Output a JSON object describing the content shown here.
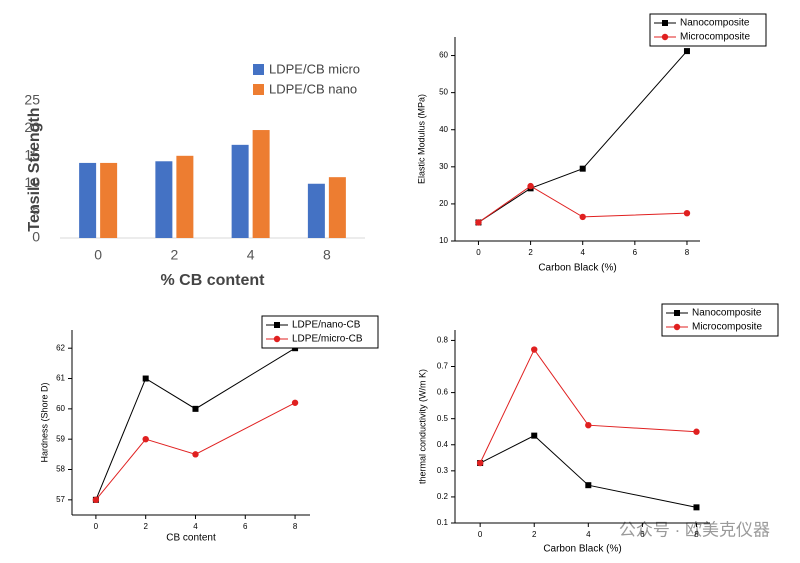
{
  "chart_data": [
    {
      "type": "bar",
      "ylabel": "Tensile Strength",
      "xlabel": "% CB content",
      "categories": [
        "0",
        "2",
        "4",
        "8"
      ],
      "series": [
        {
          "name": "LDPE/CB micro",
          "color": "#4472c4",
          "values": [
            13.7,
            14.0,
            17.0,
            9.9
          ]
        },
        {
          "name": "LDPE/CB nano",
          "color": "#ed7d31",
          "values": [
            13.7,
            15.0,
            19.7,
            11.1
          ]
        }
      ],
      "ylim": [
        0,
        25
      ],
      "yticks": [
        0,
        5,
        10,
        15,
        20,
        25
      ],
      "grid": false,
      "legend": "top-right"
    },
    {
      "type": "line",
      "xlabel": "Carbon Black (%)",
      "ylabel": "Elastic Modulus (MPa)",
      "x": [
        0,
        2,
        4,
        8
      ],
      "series": [
        {
          "name": "Nanocomposite",
          "color": "#000000",
          "marker": "square",
          "values": [
            15,
            24.2,
            29.5,
            61.2
          ]
        },
        {
          "name": "Microcomposite",
          "color": "#e02020",
          "marker": "circle",
          "values": [
            15,
            24.8,
            16.5,
            17.5
          ]
        }
      ],
      "xlim": [
        -0.9,
        8.5
      ],
      "xticks": [
        0,
        2,
        4,
        6,
        8
      ],
      "ylim": [
        10,
        65
      ],
      "yticks": [
        10,
        20,
        30,
        40,
        50,
        60
      ],
      "grid": false,
      "legend": "top-right"
    },
    {
      "type": "line",
      "xlabel": "CB content",
      "ylabel": "Hardness (Shore D)",
      "x": [
        0,
        2,
        4,
        8
      ],
      "series": [
        {
          "name": "LDPE/nano-CB",
          "color": "#000000",
          "marker": "square",
          "values": [
            57,
            61,
            60,
            62
          ]
        },
        {
          "name": "LDPE/micro-CB",
          "color": "#e02020",
          "marker": "circle",
          "values": [
            57,
            59,
            58.5,
            60.2
          ]
        }
      ],
      "xlim": [
        -0.96,
        8.6
      ],
      "xticks": [
        0,
        2,
        4,
        6,
        8
      ],
      "ylim": [
        56.5,
        62.6
      ],
      "yticks": [
        57,
        58,
        59,
        60,
        61,
        62
      ],
      "grid": false,
      "legend": "top-right"
    },
    {
      "type": "line",
      "xlabel": "Carbon Black (%)",
      "ylabel": "thermal conductivity (W/m K)",
      "x": [
        0,
        2,
        4,
        8
      ],
      "series": [
        {
          "name": "Nanocomposite",
          "color": "#000000",
          "marker": "square",
          "values": [
            0.33,
            0.435,
            0.245,
            0.16
          ]
        },
        {
          "name": "Microcomposite",
          "color": "#e02020",
          "marker": "circle",
          "values": [
            0.33,
            0.765,
            0.475,
            0.45
          ]
        }
      ],
      "xlim": [
        -0.93,
        8.5
      ],
      "xticks": [
        0,
        2,
        4,
        6,
        8
      ],
      "ylim": [
        0.1,
        0.84
      ],
      "yticks": [
        0.1,
        0.2,
        0.3,
        0.4,
        0.5,
        0.6,
        0.7,
        0.8
      ],
      "grid": false,
      "legend": "top-right"
    }
  ],
  "watermark": "公众号 · 欧美克仪器"
}
